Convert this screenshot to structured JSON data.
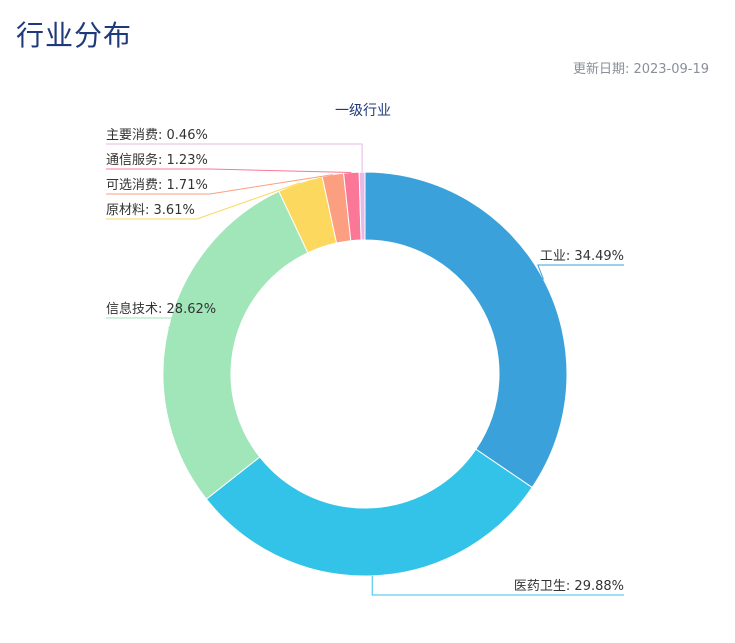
{
  "header": {
    "title": "行业分布",
    "update_date": "更新日期: 2023-09-19"
  },
  "chart_data": {
    "type": "pie",
    "variant": "donut",
    "title": "一级行业",
    "legend": "none",
    "label_separator": ": ",
    "slices": [
      {
        "label": "工业",
        "value": 34.49,
        "display": "34.49%",
        "color": "#3aa1da",
        "label_side": "right"
      },
      {
        "label": "医药卫生",
        "value": 29.88,
        "display": "29.88%",
        "color": "#33c3e8",
        "label_side": "right"
      },
      {
        "label": "信息技术",
        "value": 28.62,
        "display": "28.62%",
        "color": "#a0e6b9",
        "label_side": "left"
      },
      {
        "label": "原材料",
        "value": 3.61,
        "display": "3.61%",
        "color": "#fdd85e",
        "label_side": "left"
      },
      {
        "label": "可选消费",
        "value": 1.71,
        "display": "1.71%",
        "color": "#fb9f80",
        "label_side": "left"
      },
      {
        "label": "通信服务",
        "value": 1.23,
        "display": "1.23%",
        "color": "#fb7797",
        "label_side": "left"
      },
      {
        "label": "主要消费",
        "value": 0.46,
        "display": "0.46%",
        "color": "#e6b9e6",
        "label_side": "left"
      }
    ]
  }
}
